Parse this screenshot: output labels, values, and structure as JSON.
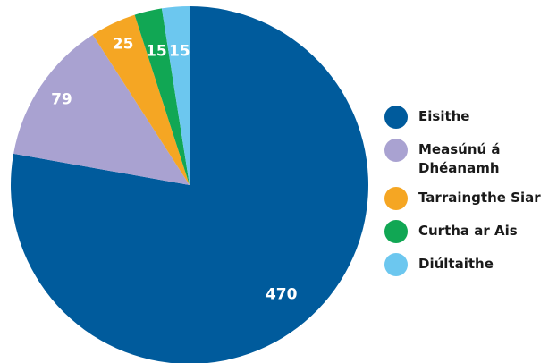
{
  "chart_data": {
    "type": "pie",
    "categories": [
      "Eisithe",
      "Measúnú á Dhéanamh",
      "Tarraingthe Siar",
      "Curtha ar Ais",
      "Diúltaithe"
    ],
    "values": [
      470,
      79,
      25,
      15,
      15
    ],
    "colors": [
      "#005b9c",
      "#a9a2d1",
      "#f5a623",
      "#11a754",
      "#6cc7ef"
    ],
    "start_angle_deg": 0,
    "direction": "clockwise",
    "legend_position": "right",
    "title": ""
  },
  "legend": {
    "items": [
      {
        "label": "Eisithe",
        "color": "#005b9c"
      },
      {
        "label": "Measúnú á Dhéanamh",
        "color": "#a9a2d1"
      },
      {
        "label": "Tarraingthe Siar",
        "color": "#f5a623"
      },
      {
        "label": "Curtha ar Ais",
        "color": "#11a754"
      },
      {
        "label": "Diúltaithe",
        "color": "#6cc7ef"
      }
    ]
  }
}
